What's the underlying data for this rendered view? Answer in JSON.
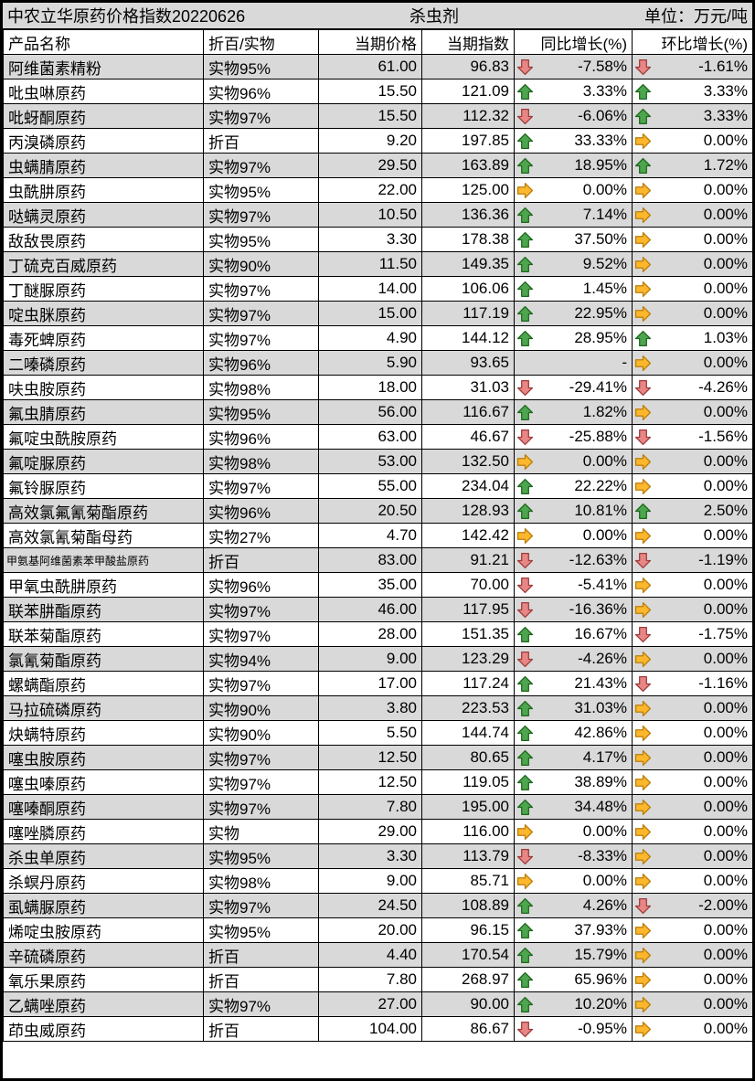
{
  "title": {
    "left": "中农立华原药价格指数20220626",
    "center": "杀虫剂",
    "right": "单位：万元/吨"
  },
  "colors": {
    "row_alt_gray": "#D9D9D9",
    "up_fill": "#4DA64D",
    "up_stroke": "#1E661E",
    "down_fill": "#E88686",
    "down_stroke": "#9E3B3B",
    "flat_fill": "#FDB72D",
    "flat_stroke": "#B97D07"
  },
  "icons": {
    "up": "up-arrow-icon",
    "down": "down-arrow-icon",
    "flat": "right-arrow-icon"
  },
  "table": {
    "columns": [
      "产品名称",
      "折百/实物",
      "当期价格",
      "当期指数",
      "同比增长(%)",
      "环比增长(%)"
    ],
    "rows": [
      {
        "name": "阿维菌素精粉",
        "spec": "实物95%",
        "price": "61.00",
        "index": "96.83",
        "yoy_dir": "down",
        "yoy": "-7.58%",
        "mom_dir": "down",
        "mom": "-1.61%"
      },
      {
        "name": "吡虫啉原药",
        "spec": "实物96%",
        "price": "15.50",
        "index": "121.09",
        "yoy_dir": "up",
        "yoy": "3.33%",
        "mom_dir": "up",
        "mom": "3.33%"
      },
      {
        "name": "吡蚜酮原药",
        "spec": "实物97%",
        "price": "15.50",
        "index": "112.32",
        "yoy_dir": "down",
        "yoy": "-6.06%",
        "mom_dir": "up",
        "mom": "3.33%"
      },
      {
        "name": "丙溴磷原药",
        "spec": "折百",
        "price": "9.20",
        "index": "197.85",
        "yoy_dir": "up",
        "yoy": "33.33%",
        "mom_dir": "flat",
        "mom": "0.00%"
      },
      {
        "name": "虫螨腈原药",
        "spec": "实物97%",
        "price": "29.50",
        "index": "163.89",
        "yoy_dir": "up",
        "yoy": "18.95%",
        "mom_dir": "up",
        "mom": "1.72%"
      },
      {
        "name": "虫酰肼原药",
        "spec": "实物95%",
        "price": "22.00",
        "index": "125.00",
        "yoy_dir": "flat",
        "yoy": "0.00%",
        "mom_dir": "flat",
        "mom": "0.00%"
      },
      {
        "name": "哒螨灵原药",
        "spec": "实物97%",
        "price": "10.50",
        "index": "136.36",
        "yoy_dir": "up",
        "yoy": "7.14%",
        "mom_dir": "flat",
        "mom": "0.00%"
      },
      {
        "name": "敌敌畏原药",
        "spec": "实物95%",
        "price": "3.30",
        "index": "178.38",
        "yoy_dir": "up",
        "yoy": "37.50%",
        "mom_dir": "flat",
        "mom": "0.00%"
      },
      {
        "name": "丁硫克百威原药",
        "spec": "实物90%",
        "price": "11.50",
        "index": "149.35",
        "yoy_dir": "up",
        "yoy": "9.52%",
        "mom_dir": "flat",
        "mom": "0.00%"
      },
      {
        "name": "丁醚脲原药",
        "spec": "实物97%",
        "price": "14.00",
        "index": "106.06",
        "yoy_dir": "up",
        "yoy": "1.45%",
        "mom_dir": "flat",
        "mom": "0.00%"
      },
      {
        "name": "啶虫脒原药",
        "spec": "实物97%",
        "price": "15.00",
        "index": "117.19",
        "yoy_dir": "up",
        "yoy": "22.95%",
        "mom_dir": "flat",
        "mom": "0.00%"
      },
      {
        "name": "毒死蜱原药",
        "spec": "实物97%",
        "price": "4.90",
        "index": "144.12",
        "yoy_dir": "up",
        "yoy": "28.95%",
        "mom_dir": "up",
        "mom": "1.03%"
      },
      {
        "name": "二嗪磷原药",
        "spec": "实物96%",
        "price": "5.90",
        "index": "93.65",
        "yoy_dir": "none",
        "yoy": "-",
        "mom_dir": "flat",
        "mom": "0.00%"
      },
      {
        "name": "呋虫胺原药",
        "spec": "实物98%",
        "price": "18.00",
        "index": "31.03",
        "yoy_dir": "down",
        "yoy": "-29.41%",
        "mom_dir": "down",
        "mom": "-4.26%"
      },
      {
        "name": "氟虫腈原药",
        "spec": "实物95%",
        "price": "56.00",
        "index": "116.67",
        "yoy_dir": "up",
        "yoy": "1.82%",
        "mom_dir": "flat",
        "mom": "0.00%"
      },
      {
        "name": "氟啶虫酰胺原药",
        "spec": "实物96%",
        "price": "63.00",
        "index": "46.67",
        "yoy_dir": "down",
        "yoy": "-25.88%",
        "mom_dir": "down",
        "mom": "-1.56%"
      },
      {
        "name": "氟啶脲原药",
        "spec": "实物98%",
        "price": "53.00",
        "index": "132.50",
        "yoy_dir": "flat",
        "yoy": "0.00%",
        "mom_dir": "flat",
        "mom": "0.00%"
      },
      {
        "name": "氟铃脲原药",
        "spec": "实物97%",
        "price": "55.00",
        "index": "234.04",
        "yoy_dir": "up",
        "yoy": "22.22%",
        "mom_dir": "flat",
        "mom": "0.00%"
      },
      {
        "name": "高效氯氟氰菊酯原药",
        "spec": "实物96%",
        "price": "20.50",
        "index": "128.93",
        "yoy_dir": "up",
        "yoy": "10.81%",
        "mom_dir": "up",
        "mom": "2.50%"
      },
      {
        "name": "高效氯氰菊酯母药",
        "spec": "实物27%",
        "price": "4.70",
        "index": "142.42",
        "yoy_dir": "flat",
        "yoy": "0.00%",
        "mom_dir": "flat",
        "mom": "0.00%"
      },
      {
        "name": "甲氨基阿维菌素苯甲酸盐原药",
        "spec": "折百",
        "price": "83.00",
        "index": "91.21",
        "yoy_dir": "down",
        "yoy": "-12.63%",
        "mom_dir": "down",
        "mom": "-1.19%"
      },
      {
        "name": "甲氧虫酰肼原药",
        "spec": "实物96%",
        "price": "35.00",
        "index": "70.00",
        "yoy_dir": "down",
        "yoy": "-5.41%",
        "mom_dir": "flat",
        "mom": "0.00%"
      },
      {
        "name": "联苯肼酯原药",
        "spec": "实物97%",
        "price": "46.00",
        "index": "117.95",
        "yoy_dir": "down",
        "yoy": "-16.36%",
        "mom_dir": "flat",
        "mom": "0.00%"
      },
      {
        "name": "联苯菊酯原药",
        "spec": "实物97%",
        "price": "28.00",
        "index": "151.35",
        "yoy_dir": "up",
        "yoy": "16.67%",
        "mom_dir": "down",
        "mom": "-1.75%"
      },
      {
        "name": "氯氰菊酯原药",
        "spec": "实物94%",
        "price": "9.00",
        "index": "123.29",
        "yoy_dir": "down",
        "yoy": "-4.26%",
        "mom_dir": "flat",
        "mom": "0.00%"
      },
      {
        "name": "螺螨酯原药",
        "spec": "实物97%",
        "price": "17.00",
        "index": "117.24",
        "yoy_dir": "up",
        "yoy": "21.43%",
        "mom_dir": "down",
        "mom": "-1.16%"
      },
      {
        "name": "马拉硫磷原药",
        "spec": "实物90%",
        "price": "3.80",
        "index": "223.53",
        "yoy_dir": "up",
        "yoy": "31.03%",
        "mom_dir": "flat",
        "mom": "0.00%"
      },
      {
        "name": "炔螨特原药",
        "spec": "实物90%",
        "price": "5.50",
        "index": "144.74",
        "yoy_dir": "up",
        "yoy": "42.86%",
        "mom_dir": "flat",
        "mom": "0.00%"
      },
      {
        "name": "噻虫胺原药",
        "spec": "实物97%",
        "price": "12.50",
        "index": "80.65",
        "yoy_dir": "up",
        "yoy": "4.17%",
        "mom_dir": "flat",
        "mom": "0.00%"
      },
      {
        "name": "噻虫嗪原药",
        "spec": "实物97%",
        "price": "12.50",
        "index": "119.05",
        "yoy_dir": "up",
        "yoy": "38.89%",
        "mom_dir": "flat",
        "mom": "0.00%"
      },
      {
        "name": "噻嗪酮原药",
        "spec": "实物97%",
        "price": "7.80",
        "index": "195.00",
        "yoy_dir": "up",
        "yoy": "34.48%",
        "mom_dir": "flat",
        "mom": "0.00%"
      },
      {
        "name": "噻唑膦原药",
        "spec": "实物",
        "price": "29.00",
        "index": "116.00",
        "yoy_dir": "flat",
        "yoy": "0.00%",
        "mom_dir": "flat",
        "mom": "0.00%"
      },
      {
        "name": "杀虫单原药",
        "spec": "实物95%",
        "price": "3.30",
        "index": "113.79",
        "yoy_dir": "down",
        "yoy": "-8.33%",
        "mom_dir": "flat",
        "mom": "0.00%"
      },
      {
        "name": "杀螟丹原药",
        "spec": "实物98%",
        "price": "9.00",
        "index": "85.71",
        "yoy_dir": "flat",
        "yoy": "0.00%",
        "mom_dir": "flat",
        "mom": "0.00%"
      },
      {
        "name": "虱螨脲原药",
        "spec": "实物97%",
        "price": "24.50",
        "index": "108.89",
        "yoy_dir": "up",
        "yoy": "4.26%",
        "mom_dir": "down",
        "mom": "-2.00%"
      },
      {
        "name": "烯啶虫胺原药",
        "spec": "实物95%",
        "price": "20.00",
        "index": "96.15",
        "yoy_dir": "up",
        "yoy": "37.93%",
        "mom_dir": "flat",
        "mom": "0.00%"
      },
      {
        "name": "辛硫磷原药",
        "spec": "折百",
        "price": "4.40",
        "index": "170.54",
        "yoy_dir": "up",
        "yoy": "15.79%",
        "mom_dir": "flat",
        "mom": "0.00%"
      },
      {
        "name": "氧乐果原药",
        "spec": "折百",
        "price": "7.80",
        "index": "268.97",
        "yoy_dir": "up",
        "yoy": "65.96%",
        "mom_dir": "flat",
        "mom": "0.00%"
      },
      {
        "name": "乙螨唑原药",
        "spec": "实物97%",
        "price": "27.00",
        "index": "90.00",
        "yoy_dir": "up",
        "yoy": "10.20%",
        "mom_dir": "flat",
        "mom": "0.00%"
      },
      {
        "name": "茚虫威原药",
        "spec": "折百",
        "price": "104.00",
        "index": "86.67",
        "yoy_dir": "down",
        "yoy": "-0.95%",
        "mom_dir": "flat",
        "mom": "0.00%"
      }
    ]
  }
}
